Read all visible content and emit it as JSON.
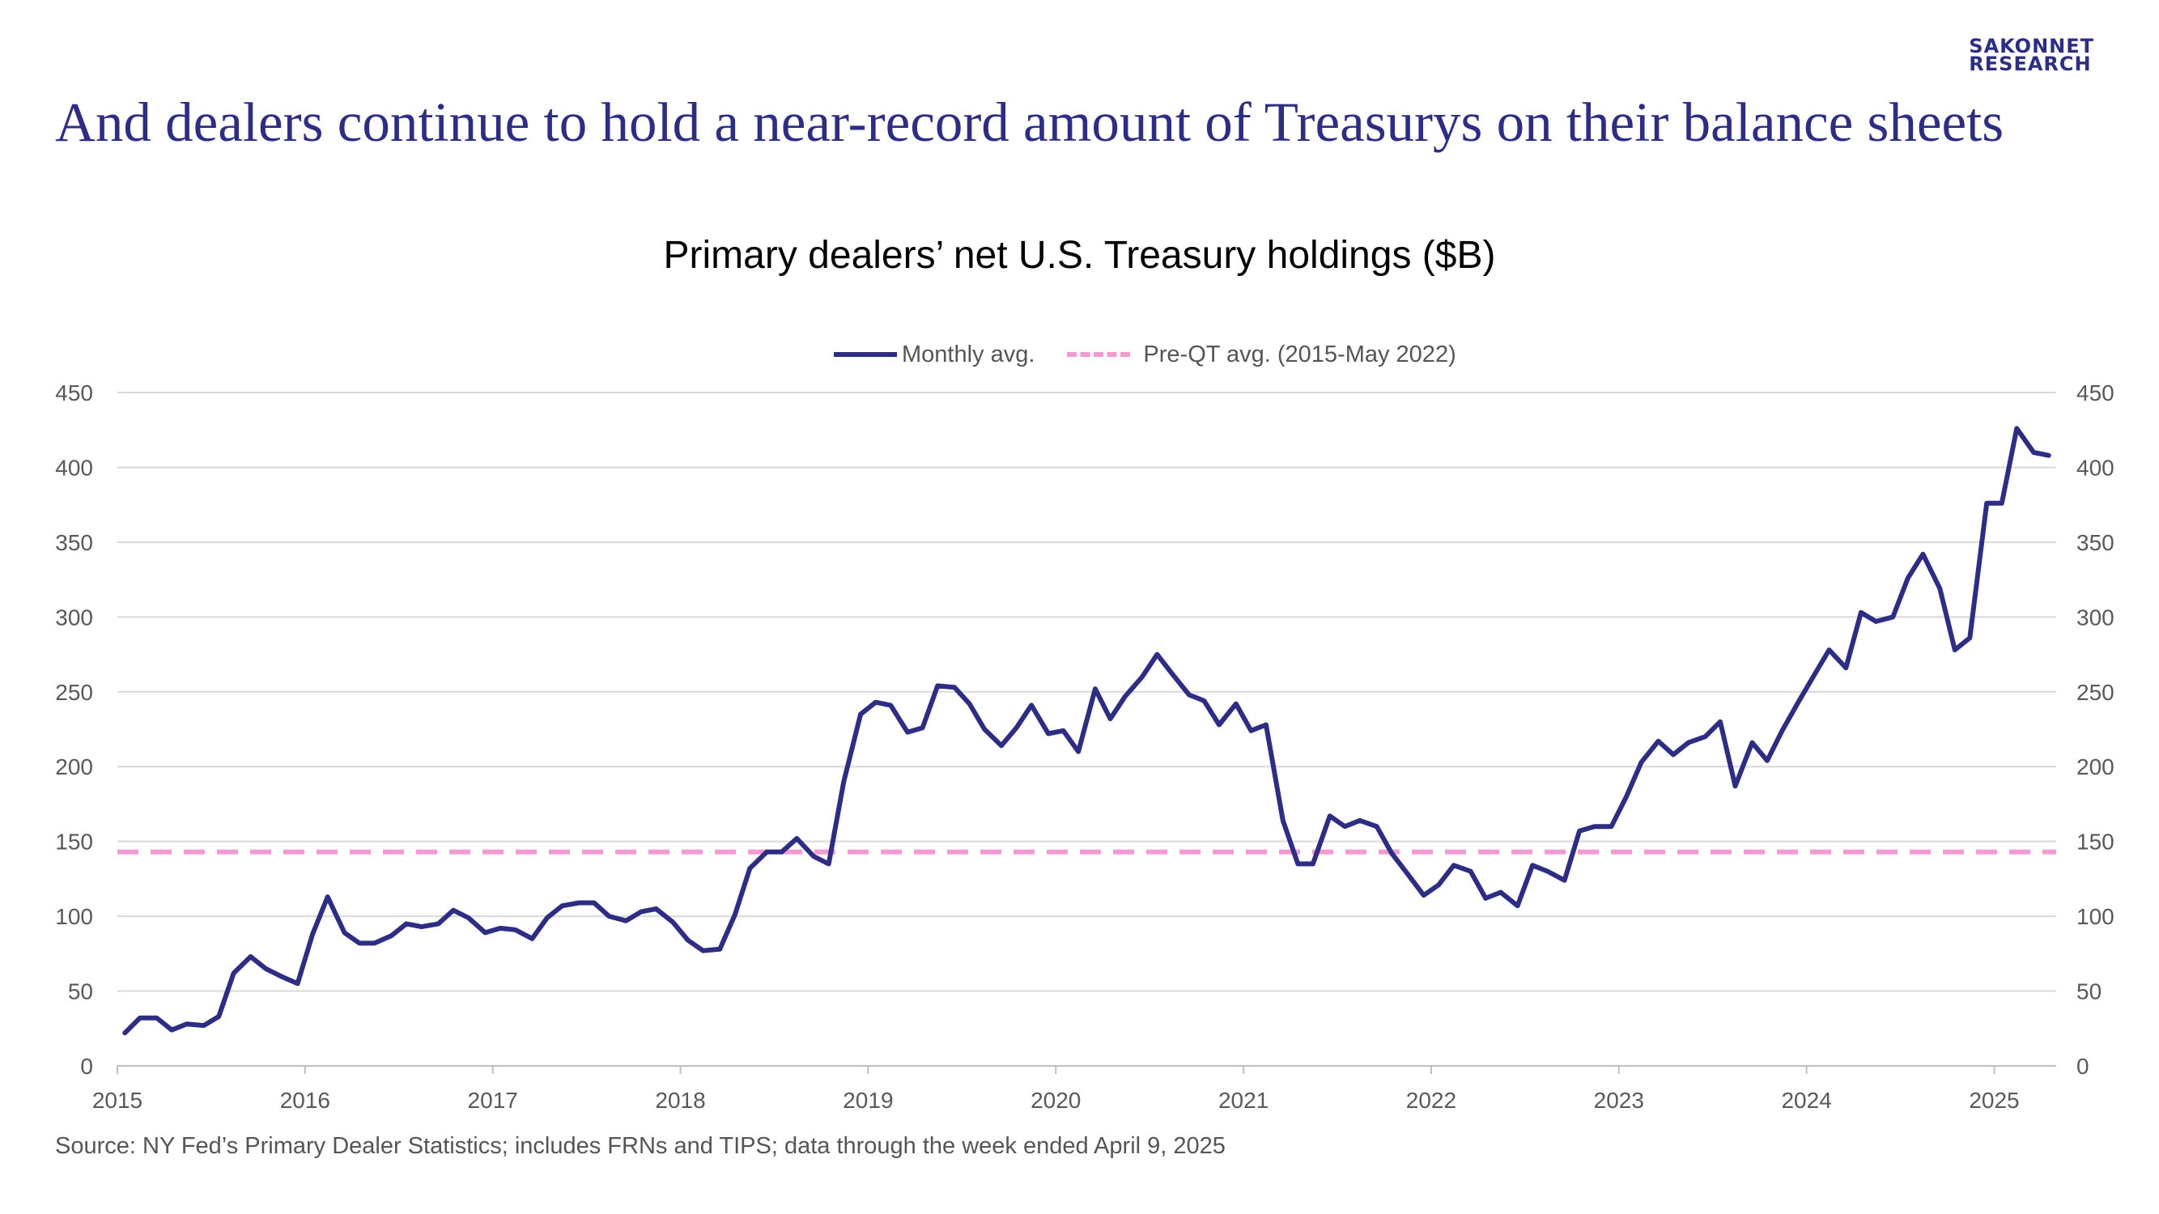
{
  "logo": {
    "line1": "SAKONNET",
    "line2": "RESEARCH"
  },
  "headline": "And dealers continue to hold a near-record amount of Treasurys on their balance sheets",
  "source": "Source: NY Fed’s Primary Dealer Statistics; includes FRNs and TIPS; data through the week ended April 9, 2025",
  "colors": {
    "line": "#2d2e83",
    "reference": "#f29bd3",
    "grid": "#d9d9d9",
    "axis_text": "#595959"
  },
  "chart_data": {
    "type": "line",
    "title": "Primary dealers’ net U.S. Treasury holdings ($B)",
    "xlabel": "",
    "ylabel": "",
    "ylim": [
      0,
      450
    ],
    "yticks": [
      "0",
      "50",
      "100",
      "150",
      "200",
      "250",
      "300",
      "350",
      "400",
      "450"
    ],
    "secondary_yticks": [
      "0",
      "50",
      "100",
      "150",
      "200",
      "250",
      "300",
      "350",
      "400",
      "450"
    ],
    "xlim": [
      2015.0,
      2025.33
    ],
    "xtick_labels": [
      "2015",
      "2016",
      "2017",
      "2018",
      "2019",
      "2020",
      "2021",
      "2022",
      "2023",
      "2024",
      "2025"
    ],
    "grid": "horizontal",
    "legend_position": "top-center",
    "series": [
      {
        "name": "Monthly avg.",
        "style": "solid",
        "x": [
          2015.04,
          2015.12,
          2015.21,
          2015.29,
          2015.37,
          2015.46,
          2015.54,
          2015.62,
          2015.71,
          2015.79,
          2015.87,
          2015.96,
          2016.04,
          2016.12,
          2016.21,
          2016.29,
          2016.37,
          2016.46,
          2016.54,
          2016.62,
          2016.71,
          2016.79,
          2016.87,
          2016.96,
          2017.04,
          2017.12,
          2017.21,
          2017.29,
          2017.37,
          2017.46,
          2017.54,
          2017.62,
          2017.71,
          2017.79,
          2017.87,
          2017.96,
          2018.04,
          2018.12,
          2018.21,
          2018.29,
          2018.37,
          2018.46,
          2018.54,
          2018.62,
          2018.71,
          2018.79,
          2018.87,
          2018.96,
          2019.04,
          2019.12,
          2019.21,
          2019.29,
          2019.37,
          2019.46,
          2019.54,
          2019.62,
          2019.71,
          2019.79,
          2019.87,
          2019.96,
          2020.04,
          2020.12,
          2020.21,
          2020.29,
          2020.37,
          2020.46,
          2020.54,
          2020.62,
          2020.71,
          2020.79,
          2020.87,
          2020.96,
          2021.04,
          2021.12,
          2021.21,
          2021.29,
          2021.37,
          2021.46,
          2021.54,
          2021.62,
          2021.71,
          2021.79,
          2021.87,
          2021.96,
          2022.04,
          2022.12,
          2022.21,
          2022.29,
          2022.37,
          2022.46,
          2022.54,
          2022.62,
          2022.71,
          2022.79,
          2022.87,
          2022.96,
          2023.04,
          2023.12,
          2023.21,
          2023.29,
          2023.37,
          2023.46,
          2023.54,
          2023.62,
          2023.71,
          2023.79,
          2023.87,
          2023.96,
          2024.04,
          2024.12,
          2024.21,
          2024.29,
          2024.37,
          2024.46,
          2024.54,
          2024.62,
          2024.71,
          2024.79,
          2024.87,
          2024.96,
          2025.04,
          2025.12,
          2025.21,
          2025.29
        ],
        "y": [
          22,
          32,
          32,
          24,
          28,
          27,
          33,
          62,
          73,
          65,
          60,
          55,
          88,
          113,
          89,
          82,
          82,
          87,
          95,
          93,
          95,
          104,
          99,
          89,
          92,
          91,
          85,
          99,
          107,
          109,
          109,
          100,
          97,
          103,
          105,
          96,
          84,
          77,
          78,
          101,
          132,
          143,
          143,
          152,
          140,
          135,
          190,
          235,
          243,
          241,
          223,
          226,
          254,
          253,
          242,
          225,
          214,
          226,
          241,
          222,
          224,
          210,
          252,
          232,
          247,
          260,
          275,
          262,
          248,
          244,
          228,
          242,
          224,
          228,
          164,
          135,
          135,
          167,
          160,
          164,
          160,
          142,
          129,
          114,
          121,
          134,
          130,
          112,
          116,
          107,
          134,
          130,
          124,
          157,
          160,
          160,
          180,
          203,
          217,
          208,
          216,
          220,
          230,
          187,
          216,
          204,
          224,
          244,
          261,
          278,
          266,
          303,
          297,
          300,
          326,
          342,
          319,
          278,
          286,
          376,
          376,
          426,
          410,
          408
        ]
      },
      {
        "name": "Pre-QT avg. (2015-May 2022)",
        "style": "dashed",
        "constant": 143
      }
    ]
  }
}
